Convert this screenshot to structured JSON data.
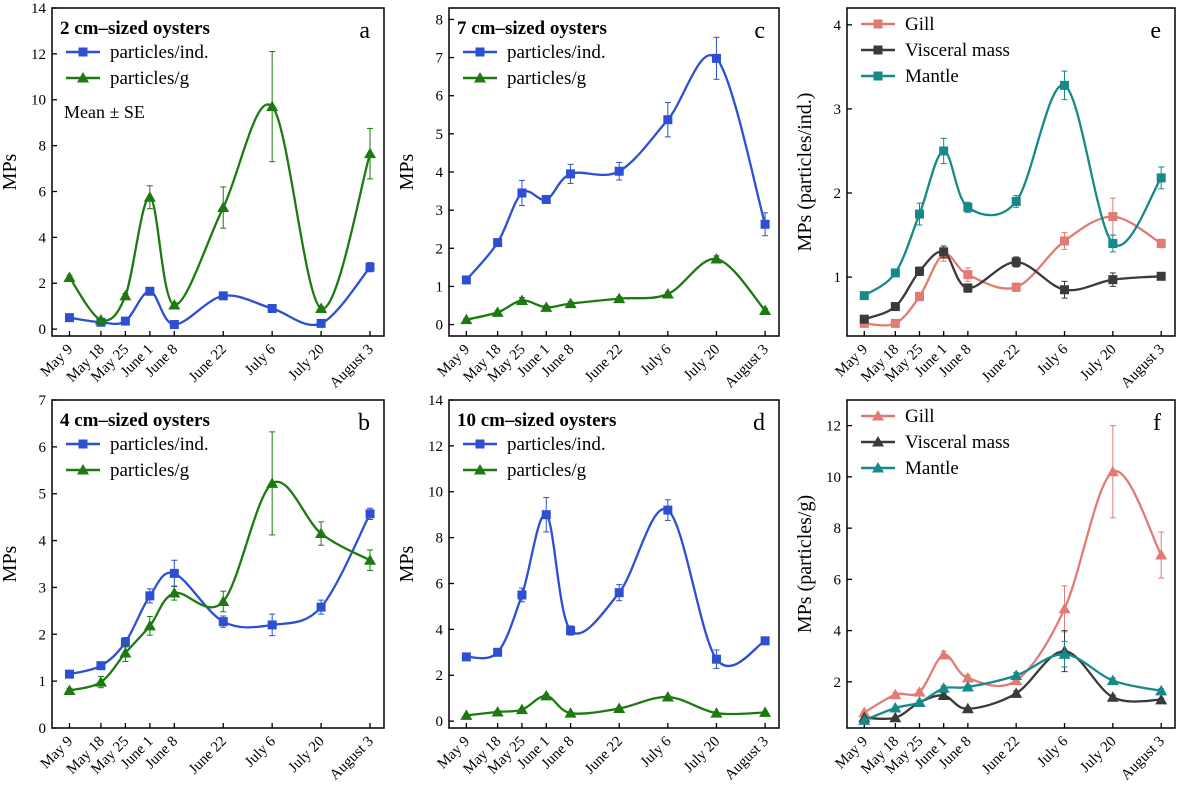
{
  "colors": {
    "blue": "#2d4fd2",
    "green": "#1d7a10",
    "gill": "#e27b76",
    "visceral": "#3a3a3a",
    "mantle": "#16898a"
  },
  "chart_data": [
    {
      "id": "a",
      "type": "line",
      "letter": "a",
      "title": "2 cm–sized oysters",
      "note": "Mean ± SE",
      "ylabel": "MPs",
      "ylim": [
        -0.3,
        14
      ],
      "yticks": [
        0,
        2,
        4,
        6,
        8,
        10,
        12,
        14
      ],
      "legend_placement": "top-left",
      "series": [
        {
          "name": "particles/ind.",
          "marker": "square",
          "color": "blue",
          "values": [
            0.5,
            0.3,
            0.35,
            1.65,
            0.2,
            1.45,
            0.9,
            0.25,
            2.7
          ],
          "errors": [
            0.05,
            0.05,
            0.05,
            0.15,
            0.05,
            0.1,
            0.1,
            0.05,
            0.2
          ]
        },
        {
          "name": "particles/g",
          "marker": "triangle",
          "color": "green",
          "values": [
            2.25,
            0.4,
            1.45,
            5.75,
            1.05,
            5.3,
            9.7,
            0.9,
            7.65
          ],
          "errors": [
            0.1,
            0.05,
            0.1,
            0.5,
            0.1,
            0.9,
            2.4,
            0.1,
            1.1
          ]
        }
      ]
    },
    {
      "id": "b",
      "type": "line",
      "letter": "b",
      "title": "4 cm–sized oysters",
      "ylabel": "MPs",
      "ylim": [
        0,
        7
      ],
      "yticks": [
        0,
        1,
        2,
        3,
        4,
        5,
        6,
        7
      ],
      "legend_placement": "top-left",
      "series": [
        {
          "name": "particles/ind.",
          "marker": "square",
          "color": "blue",
          "values": [
            1.15,
            1.33,
            1.83,
            2.82,
            3.3,
            2.27,
            2.2,
            2.58,
            4.57
          ],
          "errors": [
            0.05,
            0.06,
            0.1,
            0.15,
            0.28,
            0.12,
            0.23,
            0.15,
            0.12
          ]
        },
        {
          "name": "particles/g",
          "marker": "triangle",
          "color": "green",
          "values": [
            0.8,
            0.98,
            1.6,
            2.18,
            2.88,
            2.7,
            5.22,
            4.15,
            3.58
          ],
          "errors": [
            0.05,
            0.12,
            0.18,
            0.2,
            0.15,
            0.22,
            1.1,
            0.25,
            0.22
          ]
        }
      ]
    },
    {
      "id": "c",
      "type": "line",
      "letter": "c",
      "title": "7 cm–sized oysters",
      "ylabel": "MPs",
      "ylim": [
        -0.3,
        8.3
      ],
      "yticks": [
        0,
        1,
        2,
        3,
        4,
        5,
        6,
        7,
        8
      ],
      "legend_placement": "top-left",
      "series": [
        {
          "name": "particles/ind.",
          "marker": "square",
          "color": "blue",
          "values": [
            1.17,
            2.15,
            3.45,
            3.28,
            3.95,
            4.02,
            5.37,
            6.98,
            2.63
          ],
          "errors": [
            0.05,
            0.07,
            0.33,
            0.08,
            0.25,
            0.23,
            0.45,
            0.55,
            0.3
          ]
        },
        {
          "name": "particles/g",
          "marker": "triangle",
          "color": "green",
          "values": [
            0.13,
            0.32,
            0.63,
            0.45,
            0.55,
            0.68,
            0.8,
            1.72,
            0.37
          ],
          "errors": [
            0.03,
            0.05,
            0.08,
            0.05,
            0.05,
            0.05,
            0.05,
            0.08,
            0.05
          ]
        }
      ]
    },
    {
      "id": "d",
      "type": "line",
      "letter": "d",
      "title": "10 cm–sized oysters",
      "ylabel": "MPs",
      "ylim": [
        -0.3,
        14
      ],
      "yticks": [
        0,
        2,
        4,
        6,
        8,
        10,
        12,
        14
      ],
      "legend_placement": "top-left",
      "series": [
        {
          "name": "particles/ind.",
          "marker": "square",
          "color": "blue",
          "values": [
            2.8,
            3.0,
            5.5,
            9.0,
            3.95,
            5.6,
            9.2,
            2.7,
            3.5
          ],
          "errors": [
            0.1,
            0.1,
            0.3,
            0.75,
            0.2,
            0.35,
            0.45,
            0.4,
            0.15
          ]
        },
        {
          "name": "particles/g",
          "marker": "triangle",
          "color": "green",
          "values": [
            0.25,
            0.4,
            0.5,
            1.1,
            0.35,
            0.55,
            1.05,
            0.35,
            0.38
          ],
          "errors": [
            0.03,
            0.05,
            0.05,
            0.08,
            0.03,
            0.05,
            0.05,
            0.03,
            0.03
          ]
        }
      ]
    },
    {
      "id": "e",
      "type": "line",
      "letter": "e",
      "title": "",
      "ylabel": "MPs (particles/ind.)",
      "ylim": [
        0.3,
        4.2
      ],
      "yticks": [
        1,
        2,
        3,
        4
      ],
      "legend_placement": "top-left",
      "series": [
        {
          "name": "Gill",
          "marker": "square",
          "color": "gill",
          "values": [
            0.45,
            0.45,
            0.77,
            1.27,
            1.03,
            0.88,
            1.43,
            1.72,
            1.4
          ],
          "errors": [
            0.03,
            0.03,
            0.05,
            0.08,
            0.08,
            0.05,
            0.1,
            0.22,
            0.05
          ]
        },
        {
          "name": "Visceral mass",
          "marker": "square",
          "color": "visceral",
          "values": [
            0.5,
            0.65,
            1.07,
            1.3,
            0.87,
            1.18,
            0.85,
            0.97,
            1.01
          ],
          "errors": [
            0.03,
            0.03,
            0.05,
            0.07,
            0.05,
            0.06,
            0.1,
            0.08,
            0.04
          ]
        },
        {
          "name": "Mantle",
          "marker": "square",
          "color": "mantle",
          "values": [
            0.78,
            1.05,
            1.75,
            2.5,
            1.83,
            1.9,
            3.28,
            1.4,
            2.18
          ],
          "errors": [
            0.03,
            0.04,
            0.13,
            0.15,
            0.06,
            0.07,
            0.17,
            0.1,
            0.13
          ]
        }
      ]
    },
    {
      "id": "f",
      "type": "line",
      "letter": "f",
      "title": "",
      "ylabel": "MPs (particles/g)",
      "ylim": [
        0.2,
        13
      ],
      "yticks": [
        2,
        4,
        6,
        8,
        10,
        12
      ],
      "legend_placement": "top-left",
      "series": [
        {
          "name": "Gill",
          "marker": "triangle",
          "color": "gill",
          "values": [
            0.8,
            1.5,
            1.6,
            3.05,
            2.15,
            2.05,
            4.85,
            10.2,
            6.95
          ],
          "errors": [
            0.05,
            0.08,
            0.08,
            0.15,
            0.12,
            0.1,
            0.9,
            1.8,
            0.9
          ]
        },
        {
          "name": "Visceral mass",
          "marker": "triangle",
          "color": "visceral",
          "values": [
            0.6,
            0.6,
            1.2,
            1.47,
            0.95,
            1.55,
            3.2,
            1.4,
            1.3
          ],
          "errors": [
            0.03,
            0.03,
            0.06,
            0.1,
            0.05,
            0.1,
            0.8,
            0.08,
            0.06
          ]
        },
        {
          "name": "Mantle",
          "marker": "triangle",
          "color": "mantle",
          "values": [
            0.5,
            0.98,
            1.2,
            1.75,
            1.8,
            2.25,
            3.08,
            2.05,
            1.65
          ],
          "errors": [
            0.03,
            0.05,
            0.06,
            0.1,
            0.08,
            0.12,
            0.5,
            0.1,
            0.08
          ]
        }
      ]
    }
  ],
  "categories": [
    "May 9",
    "May 18",
    "May 25",
    "June 1",
    "June 8",
    "June 22",
    "July 6",
    "July 20",
    "August 3"
  ],
  "x_days": [
    0,
    9,
    16,
    23,
    30,
    44,
    58,
    72,
    86
  ]
}
